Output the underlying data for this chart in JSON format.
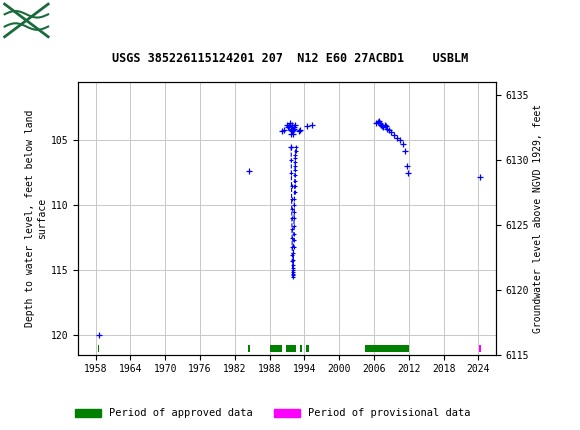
{
  "title": "USGS 385226115124201 207  N12 E60 27ACBD1    USBLM",
  "ylabel_left": "Depth to water level, feet below land\nsurface",
  "ylabel_right": "Groundwater level above NGVD 1929, feet",
  "xlim": [
    1955,
    2027
  ],
  "ylim_left": [
    121.5,
    100.5
  ],
  "ylim_right": [
    6115,
    6136
  ],
  "xticks": [
    1958,
    1964,
    1970,
    1976,
    1982,
    1988,
    1994,
    2000,
    2006,
    2012,
    2018,
    2024
  ],
  "yticks_left": [
    105,
    110,
    115,
    120
  ],
  "yticks_right": [
    6115,
    6120,
    6125,
    6130,
    6135
  ],
  "background_color": "#ffffff",
  "plot_bg_color": "#ffffff",
  "grid_color": "#c8c8c8",
  "header_color": "#1a6b3c",
  "data_color": "#0000ff",
  "approved_color": "#008000",
  "provisional_color": "#ff00ff",
  "scatter_points": [
    [
      1958.5,
      120.0
    ],
    [
      1984.5,
      107.4
    ],
    [
      1990.2,
      104.3
    ],
    [
      1990.5,
      104.2
    ],
    [
      1991.0,
      103.8
    ],
    [
      1991.2,
      104.0
    ],
    [
      1991.4,
      103.9
    ],
    [
      1991.55,
      103.7
    ],
    [
      1991.65,
      104.5
    ],
    [
      1991.7,
      105.5
    ],
    [
      1991.75,
      104.2
    ],
    [
      1991.8,
      104.1
    ],
    [
      1991.85,
      103.8
    ],
    [
      1991.9,
      104.3
    ],
    [
      1991.95,
      104.5
    ],
    [
      1992.05,
      104.2
    ],
    [
      1992.15,
      104.0
    ],
    [
      1992.25,
      104.1
    ],
    [
      1992.35,
      103.8
    ],
    [
      1993.0,
      104.3
    ],
    [
      1993.3,
      104.2
    ],
    [
      1994.5,
      103.9
    ],
    [
      1995.3,
      103.8
    ],
    [
      2006.3,
      103.7
    ],
    [
      2006.6,
      103.6
    ],
    [
      2006.8,
      103.5
    ],
    [
      2007.0,
      103.7
    ],
    [
      2007.2,
      103.8
    ],
    [
      2007.4,
      103.9
    ],
    [
      2007.6,
      104.0
    ],
    [
      2007.8,
      103.8
    ],
    [
      2008.0,
      103.9
    ],
    [
      2008.3,
      104.1
    ],
    [
      2008.6,
      104.2
    ],
    [
      2009.0,
      104.4
    ],
    [
      2009.5,
      104.6
    ],
    [
      2010.0,
      104.8
    ],
    [
      2010.5,
      105.0
    ],
    [
      2011.0,
      105.3
    ],
    [
      2011.3,
      105.8
    ],
    [
      2011.6,
      107.0
    ],
    [
      2011.8,
      107.5
    ],
    [
      2024.2,
      107.8
    ]
  ],
  "connected_dashed": [
    [
      1991.7,
      105.5
    ],
    [
      1991.72,
      106.5
    ],
    [
      1991.74,
      107.5
    ],
    [
      1991.76,
      108.5
    ],
    [
      1991.78,
      109.5
    ],
    [
      1991.8,
      110.3
    ],
    [
      1991.82,
      111.0
    ],
    [
      1991.84,
      111.8
    ],
    [
      1991.86,
      112.5
    ],
    [
      1991.88,
      113.2
    ],
    [
      1991.9,
      113.8
    ],
    [
      1991.92,
      114.3
    ],
    [
      1991.94,
      114.8
    ],
    [
      1991.96,
      115.1
    ],
    [
      1991.98,
      115.4
    ],
    [
      1992.0,
      115.5
    ],
    [
      1992.02,
      115.3
    ],
    [
      1992.04,
      115.0
    ],
    [
      1992.06,
      114.6
    ],
    [
      1992.08,
      114.2
    ],
    [
      1992.1,
      113.7
    ],
    [
      1992.12,
      113.2
    ],
    [
      1992.14,
      112.7
    ],
    [
      1992.16,
      112.2
    ],
    [
      1992.18,
      111.6
    ],
    [
      1992.2,
      111.0
    ],
    [
      1992.22,
      110.5
    ],
    [
      1992.24,
      110.0
    ],
    [
      1992.26,
      109.5
    ],
    [
      1992.28,
      109.0
    ],
    [
      1992.3,
      108.5
    ],
    [
      1992.32,
      108.1
    ],
    [
      1992.34,
      107.7
    ],
    [
      1992.36,
      107.3
    ],
    [
      1992.38,
      107.0
    ],
    [
      1992.4,
      106.7
    ],
    [
      1992.42,
      106.4
    ],
    [
      1992.44,
      106.1
    ],
    [
      1992.46,
      105.8
    ],
    [
      1992.48,
      105.5
    ]
  ],
  "approved_periods": [
    [
      1958.35,
      1958.6
    ],
    [
      1984.3,
      1984.6
    ],
    [
      1988.0,
      1990.2
    ],
    [
      1990.8,
      1992.5
    ],
    [
      1993.2,
      1993.6
    ],
    [
      1994.2,
      1994.7
    ],
    [
      2004.5,
      2012.0
    ]
  ],
  "provisional_periods": [
    [
      2024.1,
      2024.5
    ]
  ]
}
